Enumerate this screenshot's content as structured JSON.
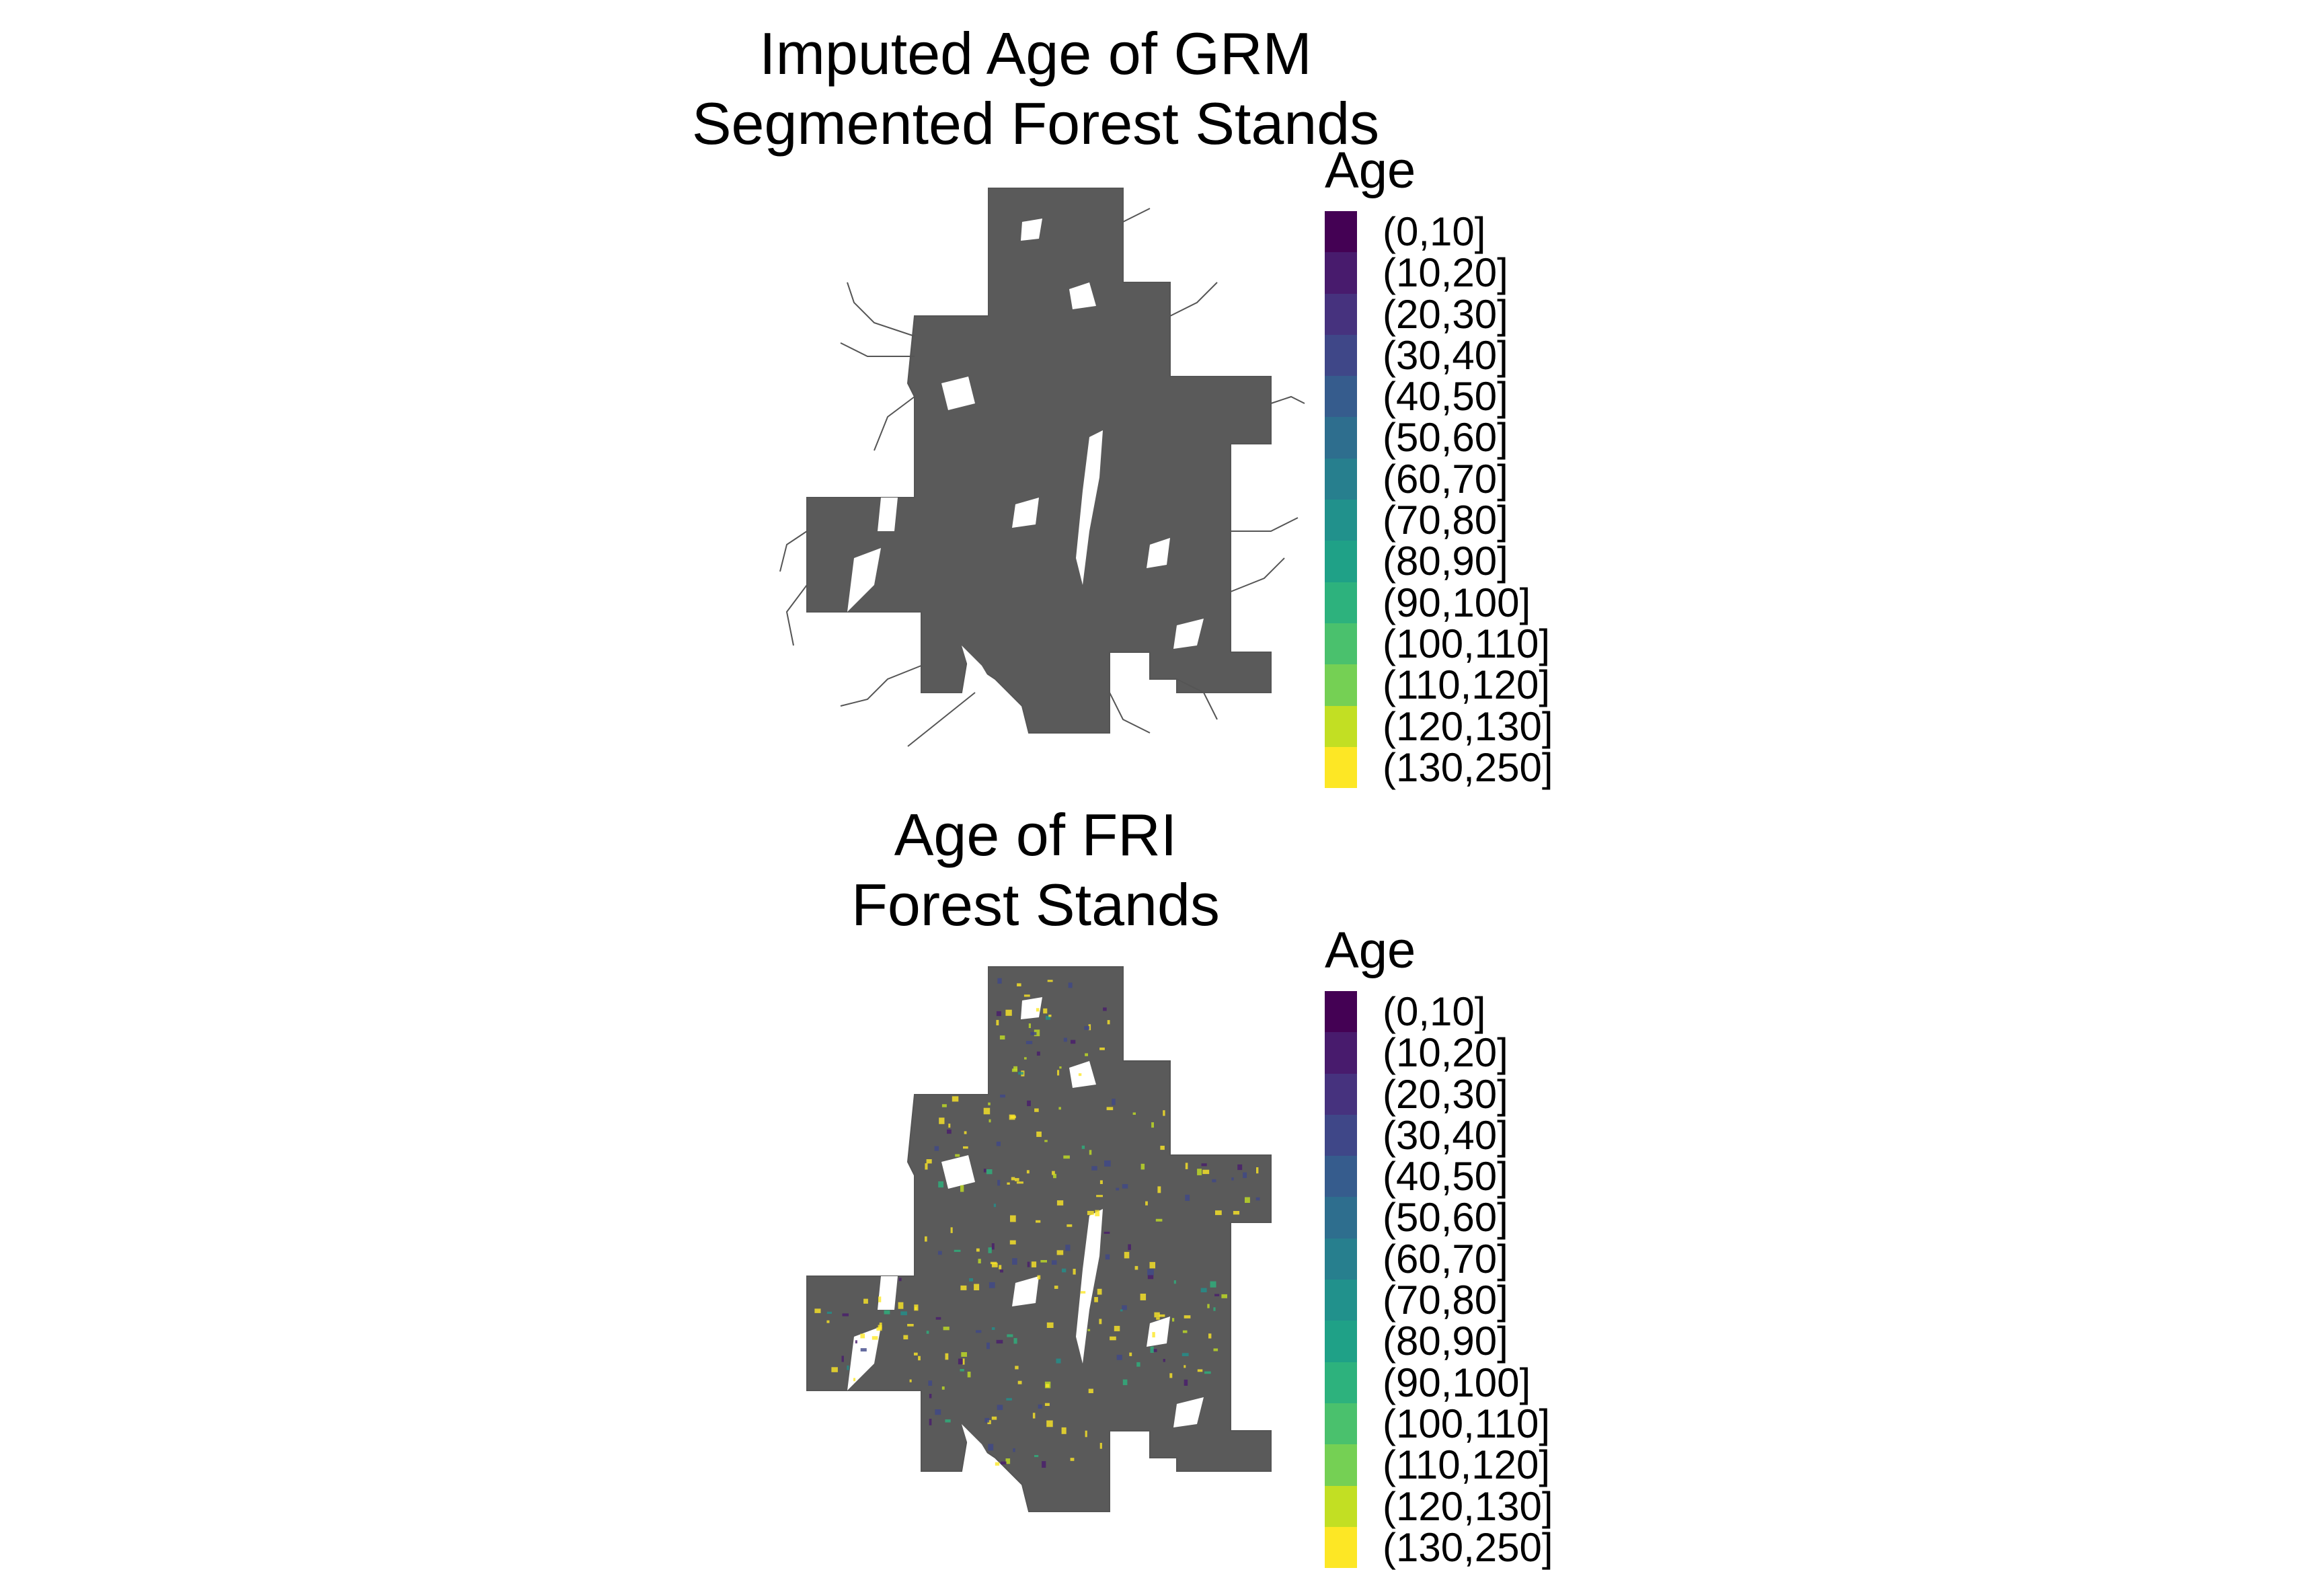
{
  "maps": [
    {
      "title_lines": [
        "Imputed Age of GRM",
        "Segmented Forest Stands"
      ],
      "legend": {
        "title": "Age",
        "items": [
          {
            "label": "(0,10]",
            "color": "#440154"
          },
          {
            "label": "(10,20]",
            "color": "#481B6D"
          },
          {
            "label": "(20,30]",
            "color": "#46327E"
          },
          {
            "label": "(30,40]",
            "color": "#3F4788"
          },
          {
            "label": "(40,50]",
            "color": "#365C8D"
          },
          {
            "label": "(50,60]",
            "color": "#2E6E8E"
          },
          {
            "label": "(60,70]",
            "color": "#277F8E"
          },
          {
            "label": "(70,80]",
            "color": "#21918C"
          },
          {
            "label": "(80,90]",
            "color": "#1FA187"
          },
          {
            "label": "(90,100]",
            "color": "#2DB27D"
          },
          {
            "label": "(100,110]",
            "color": "#4AC16D"
          },
          {
            "label": "(110,120]",
            "color": "#75D054"
          },
          {
            "label": "(120,130]",
            "color": "#C2DF23"
          },
          {
            "label": "(130,250]",
            "color": "#FDE725"
          }
        ]
      }
    },
    {
      "title_lines": [
        "Age of FRI",
        "Forest Stands"
      ],
      "legend": {
        "title": "Age",
        "items": [
          {
            "label": "(0,10]",
            "color": "#440154"
          },
          {
            "label": "(10,20]",
            "color": "#481B6D"
          },
          {
            "label": "(20,30]",
            "color": "#46327E"
          },
          {
            "label": "(30,40]",
            "color": "#3F4788"
          },
          {
            "label": "(40,50]",
            "color": "#365C8D"
          },
          {
            "label": "(50,60]",
            "color": "#2E6E8E"
          },
          {
            "label": "(60,70]",
            "color": "#277F8E"
          },
          {
            "label": "(70,80]",
            "color": "#21918C"
          },
          {
            "label": "(80,90]",
            "color": "#1FA187"
          },
          {
            "label": "(90,100]",
            "color": "#2DB27D"
          },
          {
            "label": "(100,110]",
            "color": "#4AC16D"
          },
          {
            "label": "(110,120]",
            "color": "#75D054"
          },
          {
            "label": "(120,130]",
            "color": "#C2DF23"
          },
          {
            "label": "(130,250]",
            "color": "#FDE725"
          }
        ]
      }
    }
  ],
  "styles": {
    "stand_fill": "#5A5A5A",
    "stand_outline": "#555555"
  }
}
